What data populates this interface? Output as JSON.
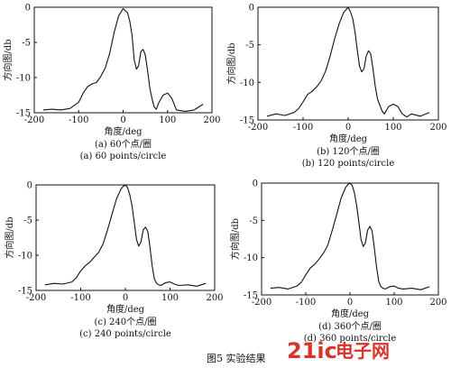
{
  "figure_caption": "图5   实验结果",
  "watermark": {
    "brand": "21ic",
    "name": "电子网",
    "color": "#d9342b"
  },
  "chart_data": [
    {
      "type": "line",
      "xlabel": "角度/deg",
      "ylabel": "方向图/db",
      "xlim": [
        -200,
        200
      ],
      "ylim": [
        -15,
        0
      ],
      "xticks": [
        -200,
        -100,
        0,
        100,
        200
      ],
      "yticks": [
        0,
        -5,
        -10,
        -15
      ],
      "caption_cn": "(a) 60个点/圈",
      "caption_en": "(a) 60 points/circle",
      "x": [
        -180,
        -160,
        -140,
        -120,
        -100,
        -90,
        -80,
        -70,
        -60,
        -50,
        -40,
        -30,
        -20,
        -10,
        0,
        10,
        15,
        20,
        25,
        30,
        35,
        40,
        45,
        50,
        55,
        60,
        65,
        70,
        75,
        80,
        90,
        100,
        110,
        120,
        140,
        160,
        180
      ],
      "values": [
        -14.6,
        -14.5,
        -14.6,
        -14.4,
        -13.5,
        -12.2,
        -11.3,
        -10.9,
        -10.7,
        -9.8,
        -8.6,
        -6.5,
        -3.5,
        -1.2,
        -0.2,
        -0.8,
        -2.0,
        -4.0,
        -7.5,
        -8.8,
        -8.3,
        -6.3,
        -6.0,
        -6.8,
        -9.0,
        -11.5,
        -13.0,
        -14.2,
        -14.5,
        -13.6,
        -12.5,
        -12.2,
        -13.0,
        -14.6,
        -14.8,
        -14.6,
        -13.8
      ]
    },
    {
      "type": "line",
      "xlabel": "角度/deg",
      "ylabel": "方向图/db",
      "xlim": [
        -200,
        200
      ],
      "ylim": [
        -15,
        0
      ],
      "xticks": [
        -200,
        -100,
        0,
        100,
        200
      ],
      "yticks": [
        0,
        -5,
        -10,
        -15
      ],
      "caption_cn": "(b) 120个点/圈",
      "caption_en": "(b) 120 points/circle",
      "x": [
        -180,
        -160,
        -140,
        -120,
        -110,
        -100,
        -90,
        -80,
        -70,
        -60,
        -50,
        -40,
        -30,
        -20,
        -10,
        0,
        5,
        10,
        15,
        20,
        25,
        30,
        35,
        40,
        45,
        50,
        55,
        60,
        65,
        70,
        75,
        80,
        90,
        100,
        110,
        120,
        130,
        140,
        160,
        180
      ],
      "values": [
        -14.5,
        -14.2,
        -14.4,
        -14.0,
        -13.5,
        -12.6,
        -11.6,
        -11.2,
        -10.6,
        -9.8,
        -8.5,
        -6.5,
        -4.2,
        -2.2,
        -0.7,
        0,
        -0.6,
        -1.5,
        -3.2,
        -5.6,
        -7.8,
        -8.6,
        -8.2,
        -6.5,
        -5.8,
        -6.2,
        -8.2,
        -10.5,
        -12.2,
        -13.0,
        -13.8,
        -14.2,
        -13.2,
        -12.9,
        -13.2,
        -14.2,
        -14.6,
        -14.2,
        -14.5,
        -14.0
      ]
    },
    {
      "type": "line",
      "xlabel": "角度/deg",
      "ylabel": "方向图/db",
      "xlim": [
        -200,
        200
      ],
      "ylim": [
        -15,
        0
      ],
      "xticks": [
        -200,
        -100,
        0,
        100,
        200
      ],
      "yticks": [
        0,
        -5,
        -10,
        -15
      ],
      "caption_cn": "(c) 240个点/圈",
      "caption_en": "(c) 240 points/circle",
      "x": [
        -180,
        -160,
        -140,
        -120,
        -110,
        -100,
        -90,
        -80,
        -70,
        -60,
        -50,
        -40,
        -30,
        -20,
        -10,
        -5,
        0,
        5,
        10,
        15,
        20,
        25,
        30,
        35,
        40,
        45,
        50,
        55,
        60,
        65,
        70,
        75,
        80,
        90,
        100,
        110,
        120,
        140,
        160,
        180
      ],
      "values": [
        -14.2,
        -14.0,
        -14.1,
        -13.8,
        -13.2,
        -12.2,
        -11.5,
        -11.0,
        -10.3,
        -9.6,
        -8.4,
        -6.4,
        -4.2,
        -2.0,
        -0.6,
        -0.2,
        0,
        -0.4,
        -1.4,
        -3.0,
        -5.4,
        -7.8,
        -8.7,
        -8.1,
        -6.4,
        -6.0,
        -6.6,
        -8.8,
        -11.5,
        -13.4,
        -14.0,
        -14.2,
        -14.3,
        -13.9,
        -13.8,
        -14.1,
        -14.3,
        -14.2,
        -14.4,
        -14.0
      ]
    },
    {
      "type": "line",
      "xlabel": "角度/deg",
      "ylabel": "方向图/db",
      "xlim": [
        -200,
        200
      ],
      "ylim": [
        -15,
        0
      ],
      "xticks": [
        -200,
        -100,
        0,
        100,
        200
      ],
      "yticks": [
        0,
        -5,
        -10,
        -15
      ],
      "caption_cn": "(d) 360个点/圈",
      "caption_en": "(d) 360 points/circle",
      "x": [
        -180,
        -160,
        -140,
        -120,
        -110,
        -100,
        -90,
        -80,
        -70,
        -60,
        -50,
        -40,
        -30,
        -20,
        -10,
        -5,
        0,
        5,
        10,
        15,
        20,
        25,
        30,
        35,
        40,
        45,
        50,
        55,
        60,
        65,
        70,
        75,
        80,
        90,
        100,
        110,
        120,
        140,
        160,
        180
      ],
      "values": [
        -14.1,
        -14.0,
        -14.2,
        -13.8,
        -13.3,
        -12.3,
        -11.4,
        -10.9,
        -10.2,
        -9.4,
        -8.3,
        -6.3,
        -4.2,
        -2.0,
        -0.6,
        -0.2,
        0,
        -0.3,
        -1.3,
        -3.0,
        -5.2,
        -7.6,
        -8.5,
        -8.0,
        -6.3,
        -5.8,
        -6.4,
        -8.6,
        -11.2,
        -13.2,
        -13.9,
        -14.1,
        -14.2,
        -13.9,
        -13.8,
        -14.1,
        -14.2,
        -14.1,
        -14.3,
        -13.9
      ]
    }
  ]
}
